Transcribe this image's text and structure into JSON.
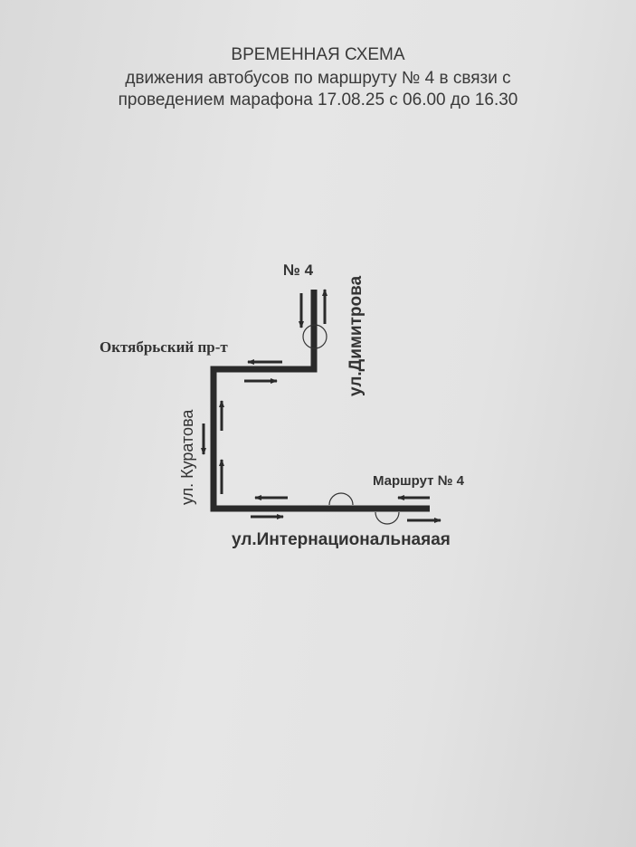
{
  "header": {
    "line1": "ВРЕМЕННАЯ СХЕМА",
    "line2": "движения автобусов по маршруту № 4 в связи с",
    "line3": "проведением марафона 17.08.25  с 06.00 до 16.30"
  },
  "map": {
    "route_label_top": "№ 4",
    "route_label_right": "Маршрут № 4",
    "streets": {
      "oktyabrsky": "Октябрьский пр-т",
      "dimitrova": "ул.Димитрова",
      "kuratova": "ул. Куратова",
      "internatsionalnaya": "ул.Интернациональнаяая"
    },
    "colors": {
      "route": "#2a2a2a",
      "arrow": "#2a2a2a"
    }
  }
}
